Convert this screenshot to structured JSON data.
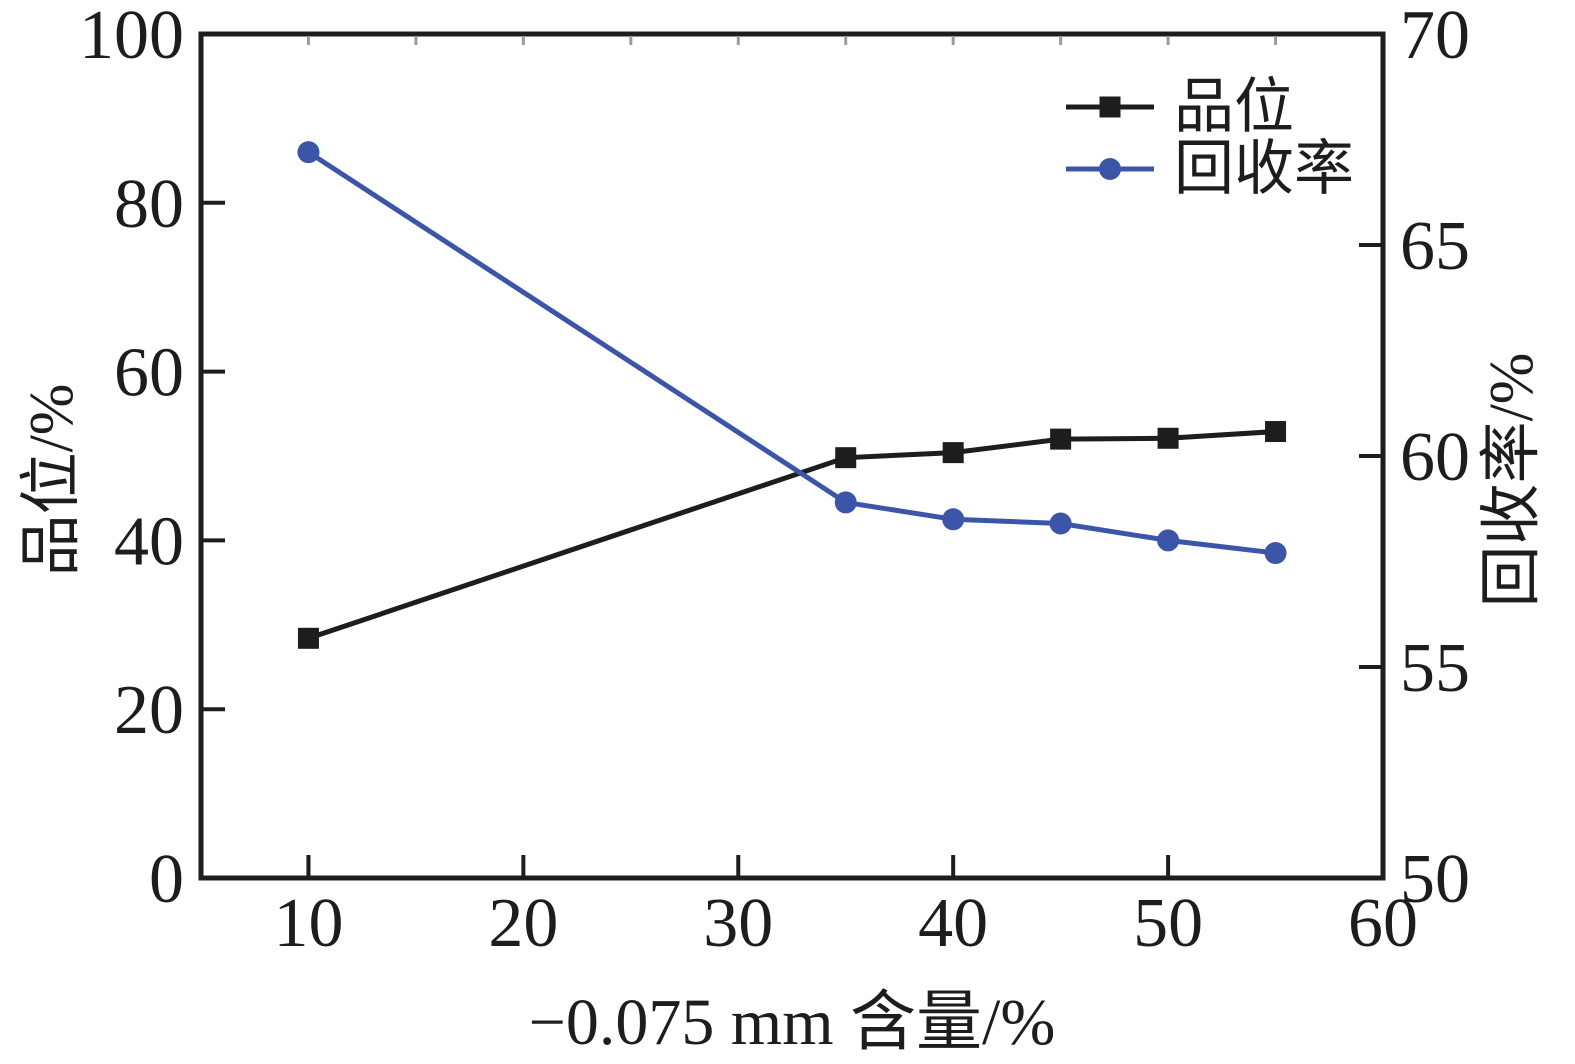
{
  "chart_data": {
    "type": "line",
    "title": "",
    "x": [
      10,
      35,
      40,
      45,
      50,
      55
    ],
    "series": [
      {
        "name": "品位",
        "axis": "left",
        "color": "#1d1d1d",
        "marker": "square",
        "values": [
          28.4,
          49.8,
          50.4,
          52.0,
          52.1,
          52.9
        ]
      },
      {
        "name": "回收率",
        "axis": "right",
        "color": "#3b56a8",
        "marker": "circle",
        "values": [
          67.2,
          58.9,
          58.5,
          58.4,
          58.0,
          57.7
        ]
      }
    ],
    "xlabel": "−0.075 mm 含量/%",
    "ylabel_left": "品位/%",
    "ylabel_right": "回收率/%",
    "x_axis": {
      "min": 5,
      "max": 60,
      "ticks": [
        10,
        20,
        30,
        40,
        50,
        60
      ]
    },
    "y_left": {
      "min": 0,
      "max": 100,
      "ticks": [
        0,
        20,
        40,
        60,
        80,
        100
      ]
    },
    "y_right": {
      "min": 50,
      "max": 70,
      "ticks": [
        50,
        55,
        60,
        65,
        70
      ]
    },
    "grid": false,
    "legend_position": "top-right",
    "axis_color": "#1d1d1d",
    "minor_top_tick_color": "#9d9d9d"
  }
}
